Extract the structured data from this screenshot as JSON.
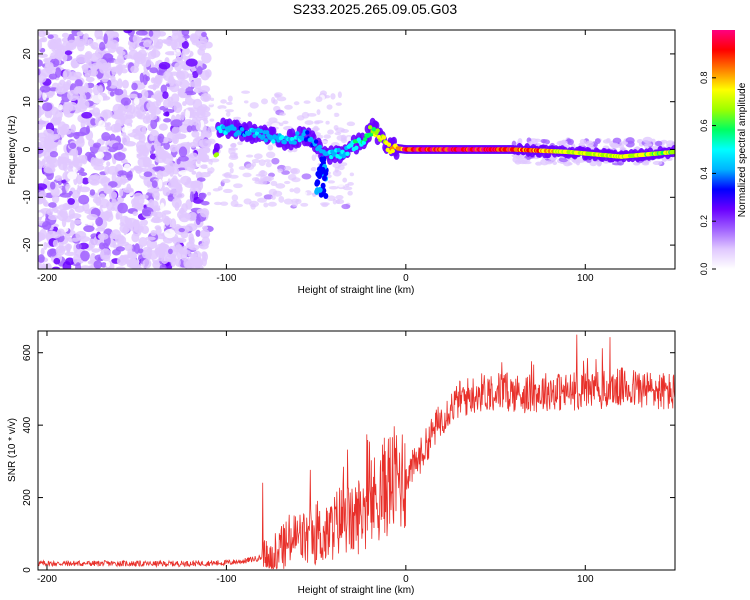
{
  "title": "S233.2025.265.09.05.G03",
  "chart_data": [
    {
      "type": "heatmap",
      "name": "spectrogram",
      "xlabel": "Height of straight line (km)",
      "ylabel": "Frequency (Hz)",
      "xlim": [
        -205,
        150
      ],
      "ylim": [
        -25,
        25
      ],
      "xticks": [
        -200,
        -100,
        0,
        100
      ],
      "yticks": [
        -20,
        -10,
        0,
        10,
        20
      ],
      "colorbar": {
        "label": "Normalized spectral amplitude",
        "range": [
          0,
          1
        ],
        "ticks": [
          0.0,
          0.2,
          0.4,
          0.6,
          0.8
        ],
        "tick_labels": [
          "0.0",
          "0.2",
          "0.4",
          "0.6",
          "0.8"
        ],
        "colors": [
          "#ffffff",
          "#e0c8ff",
          "#a060ff",
          "#6a00ff",
          "#0000ff",
          "#00b4ff",
          "#00ffff",
          "#00ff60",
          "#9cff00",
          "#ffff00",
          "#ff8000",
          "#ff0000",
          "#ff0080"
        ]
      },
      "signal_track": [
        {
          "x": -105,
          "freq": 4.5,
          "amp": 0.5
        },
        {
          "x": -95,
          "freq": 4.0,
          "amp": 0.4
        },
        {
          "x": -85,
          "freq": 3.5,
          "amp": 0.45
        },
        {
          "x": -75,
          "freq": 2.5,
          "amp": 0.45
        },
        {
          "x": -65,
          "freq": 2.0,
          "amp": 0.5
        },
        {
          "x": -55,
          "freq": 3.0,
          "amp": 0.4
        },
        {
          "x": -45,
          "freq": -1.5,
          "amp": 0.45
        },
        {
          "x": -35,
          "freq": -0.5,
          "amp": 0.5
        },
        {
          "x": -25,
          "freq": 1.5,
          "amp": 0.55
        },
        {
          "x": -18,
          "freq": 4.5,
          "amp": 0.7
        },
        {
          "x": -10,
          "freq": 0.5,
          "amp": 0.8
        },
        {
          "x": 0,
          "freq": 0.0,
          "amp": 0.95
        },
        {
          "x": 30,
          "freq": 0.0,
          "amp": 1.0
        },
        {
          "x": 60,
          "freq": 0.0,
          "amp": 0.95
        },
        {
          "x": 90,
          "freq": -0.5,
          "amp": 0.75
        },
        {
          "x": 120,
          "freq": -1.5,
          "amp": 0.75
        },
        {
          "x": 150,
          "freq": -0.5,
          "amp": 0.7
        }
      ]
    },
    {
      "type": "line",
      "name": "snr",
      "xlabel": "Height of straight line (km)",
      "ylabel": "SNR (10 * v/v)",
      "xlim": [
        -205,
        150
      ],
      "ylim": [
        0,
        660
      ],
      "xticks": [
        -200,
        -100,
        0,
        100
      ],
      "yticks": [
        0,
        200,
        400,
        600
      ],
      "color": "#e8302a",
      "series": [
        {
          "name": "SNR",
          "x": [
            -205,
            -180,
            -160,
            -140,
            -120,
            -100,
            -90,
            -80,
            -75,
            -70,
            -65,
            -60,
            -55,
            -50,
            -45,
            -40,
            -35,
            -30,
            -25,
            -20,
            -15,
            -10,
            -5,
            0,
            5,
            10,
            15,
            20,
            25,
            30,
            40,
            50,
            60,
            70,
            80,
            90,
            100,
            110,
            120,
            130,
            140,
            150
          ],
          "y": [
            18,
            18,
            18,
            17,
            18,
            20,
            25,
            35,
            40,
            55,
            80,
            90,
            85,
            100,
            90,
            120,
            150,
            130,
            160,
            180,
            210,
            240,
            250,
            260,
            290,
            330,
            380,
            420,
            450,
            470,
            490,
            495,
            490,
            485,
            495,
            490,
            500,
            495,
            505,
            500,
            495,
            490
          ]
        }
      ]
    }
  ]
}
